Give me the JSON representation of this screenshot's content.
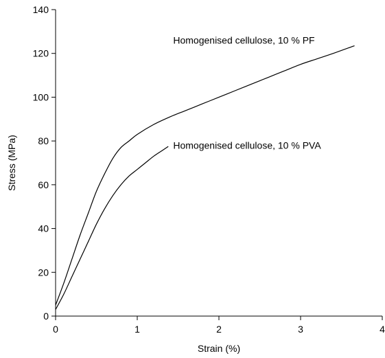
{
  "chart_data": {
    "type": "line",
    "xlabel": "Strain (%)",
    "ylabel": "Stress (MPa)",
    "xlim": [
      0,
      4
    ],
    "ylim": [
      0,
      140
    ],
    "x_ticks": [
      0,
      1,
      2,
      3,
      4
    ],
    "y_ticks": [
      0,
      20,
      40,
      60,
      80,
      100,
      120,
      140
    ],
    "x_tick_labels": [
      "0",
      "1",
      "2",
      "3",
      "4"
    ],
    "y_tick_labels": [
      "0",
      "20",
      "40",
      "60",
      "80",
      "100",
      "120",
      "140"
    ],
    "grid": false,
    "legend": "none",
    "series": [
      {
        "name": "Homogenised cellulose, 10 % PF",
        "label": "Homogenised cellulose, 10 % PF",
        "x": [
          0,
          0.1,
          0.2,
          0.3,
          0.4,
          0.5,
          0.6,
          0.7,
          0.8,
          0.9,
          1.0,
          1.2,
          1.4,
          1.6,
          1.8,
          2.0,
          2.2,
          2.4,
          2.6,
          2.8,
          3.0,
          3.2,
          3.4,
          3.66
        ],
        "y": [
          5,
          15,
          26,
          37,
          47,
          57,
          65,
          72,
          77,
          80,
          83,
          87.5,
          91,
          94,
          97,
          100,
          103,
          106,
          109,
          112,
          115,
          117.5,
          120,
          123.5
        ]
      },
      {
        "name": "Homogenised cellulose, 10 % PVA",
        "label": "Homogenised cellulose, 10 % PVA",
        "x": [
          0,
          0.1,
          0.2,
          0.3,
          0.4,
          0.5,
          0.6,
          0.7,
          0.8,
          0.9,
          1.0,
          1.1,
          1.2,
          1.3,
          1.38
        ],
        "y": [
          3,
          10,
          18,
          26,
          34,
          42,
          49,
          55,
          60,
          64,
          67,
          70,
          73,
          75.5,
          77.5
        ]
      }
    ]
  }
}
